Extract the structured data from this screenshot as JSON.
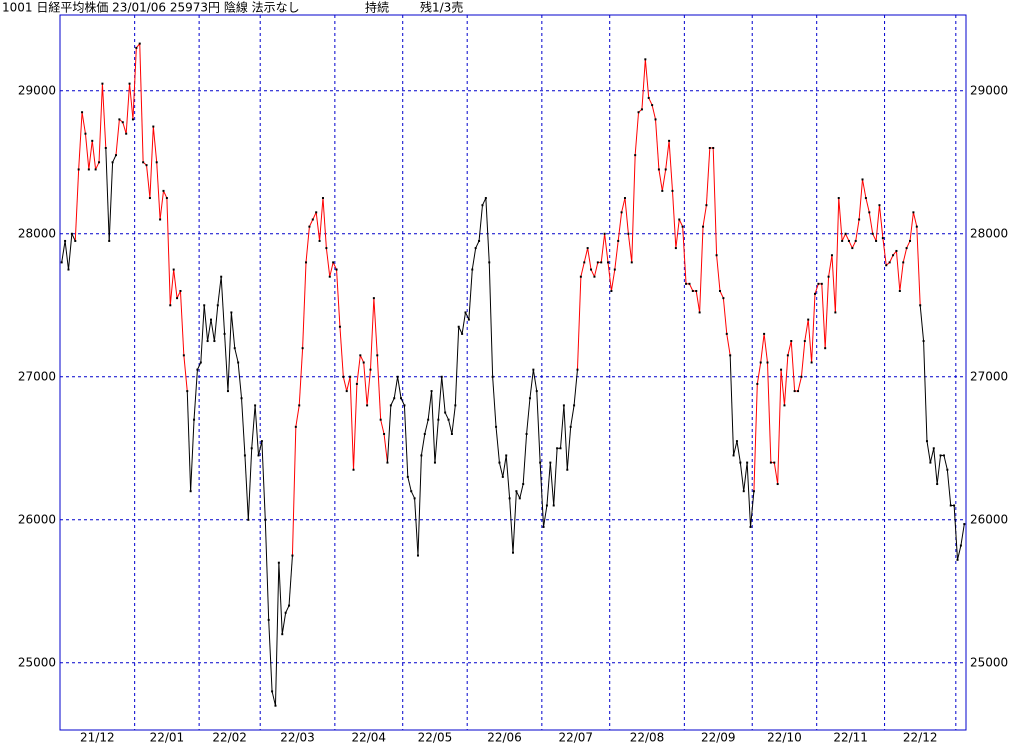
{
  "chart_data": {
    "type": "line",
    "title": "1001 日経平均株価 23/01/06 25973円 陰線 法示なし",
    "annotations": [
      "持続",
      "残1/3売"
    ],
    "x": [
      "21/12",
      "21/12",
      "21/12",
      "21/12",
      "21/12",
      "21/12",
      "21/12",
      "21/12",
      "21/12",
      "21/12",
      "21/12",
      "21/12",
      "21/12",
      "21/12",
      "21/12",
      "21/12",
      "21/12",
      "21/12",
      "21/12",
      "21/12",
      "21/12",
      "21/12",
      "22/01",
      "22/01",
      "22/01",
      "22/01",
      "22/01",
      "22/01",
      "22/01",
      "22/01",
      "22/01",
      "22/01",
      "22/01",
      "22/01",
      "22/01",
      "22/01",
      "22/01",
      "22/01",
      "22/01",
      "22/01",
      "22/01",
      "22/02",
      "22/02",
      "22/02",
      "22/02",
      "22/02",
      "22/02",
      "22/02",
      "22/02",
      "22/02",
      "22/02",
      "22/02",
      "22/02",
      "22/02",
      "22/02",
      "22/02",
      "22/02",
      "22/02",
      "22/02",
      "22/03",
      "22/03",
      "22/03",
      "22/03",
      "22/03",
      "22/03",
      "22/03",
      "22/03",
      "22/03",
      "22/03",
      "22/03",
      "22/03",
      "22/03",
      "22/03",
      "22/03",
      "22/03",
      "22/03",
      "22/03",
      "22/03",
      "22/03",
      "22/03",
      "22/03",
      "22/04",
      "22/04",
      "22/04",
      "22/04",
      "22/04",
      "22/04",
      "22/04",
      "22/04",
      "22/04",
      "22/04",
      "22/04",
      "22/04",
      "22/04",
      "22/04",
      "22/04",
      "22/04",
      "22/04",
      "22/04",
      "22/04",
      "22/04",
      "22/05",
      "22/05",
      "22/05",
      "22/05",
      "22/05",
      "22/05",
      "22/05",
      "22/05",
      "22/05",
      "22/05",
      "22/05",
      "22/05",
      "22/05",
      "22/05",
      "22/05",
      "22/05",
      "22/05",
      "22/05",
      "22/05",
      "22/06",
      "22/06",
      "22/06",
      "22/06",
      "22/06",
      "22/06",
      "22/06",
      "22/06",
      "22/06",
      "22/06",
      "22/06",
      "22/06",
      "22/06",
      "22/06",
      "22/06",
      "22/06",
      "22/06",
      "22/06",
      "22/06",
      "22/06",
      "22/06",
      "22/06",
      "22/07",
      "22/07",
      "22/07",
      "22/07",
      "22/07",
      "22/07",
      "22/07",
      "22/07",
      "22/07",
      "22/07",
      "22/07",
      "22/07",
      "22/07",
      "22/07",
      "22/07",
      "22/07",
      "22/07",
      "22/07",
      "22/07",
      "22/07",
      "22/08",
      "22/08",
      "22/08",
      "22/08",
      "22/08",
      "22/08",
      "22/08",
      "22/08",
      "22/08",
      "22/08",
      "22/08",
      "22/08",
      "22/08",
      "22/08",
      "22/08",
      "22/08",
      "22/08",
      "22/08",
      "22/08",
      "22/08",
      "22/08",
      "22/08",
      "22/09",
      "22/09",
      "22/09",
      "22/09",
      "22/09",
      "22/09",
      "22/09",
      "22/09",
      "22/09",
      "22/09",
      "22/09",
      "22/09",
      "22/09",
      "22/09",
      "22/09",
      "22/09",
      "22/09",
      "22/09",
      "22/09",
      "22/09",
      "22/10",
      "22/10",
      "22/10",
      "22/10",
      "22/10",
      "22/10",
      "22/10",
      "22/10",
      "22/10",
      "22/10",
      "22/10",
      "22/10",
      "22/10",
      "22/10",
      "22/10",
      "22/10",
      "22/10",
      "22/10",
      "22/10",
      "22/11",
      "22/11",
      "22/11",
      "22/11",
      "22/11",
      "22/11",
      "22/11",
      "22/11",
      "22/11",
      "22/11",
      "22/11",
      "22/11",
      "22/11",
      "22/11",
      "22/11",
      "22/11",
      "22/11",
      "22/11",
      "22/11",
      "22/11",
      "22/12",
      "22/12",
      "22/12",
      "22/12",
      "22/12",
      "22/12",
      "22/12",
      "22/12",
      "22/12",
      "22/12",
      "22/12",
      "22/12",
      "22/12",
      "22/12",
      "22/12",
      "22/12",
      "22/12",
      "22/12",
      "22/12",
      "22/12",
      "22/12",
      null,
      null,
      null
    ],
    "values": [
      27800,
      27950,
      27750,
      28000,
      27950,
      28450,
      28850,
      28700,
      28450,
      28650,
      28450,
      28500,
      29050,
      28600,
      27950,
      28500,
      28550,
      28800,
      28780,
      28700,
      29050,
      28800,
      29300,
      29330,
      28500,
      28480,
      28250,
      28750,
      28500,
      28100,
      28300,
      28250,
      27500,
      27750,
      27550,
      27600,
      27150,
      26900,
      26200,
      26700,
      27050,
      27100,
      27500,
      27250,
      27400,
      27250,
      27500,
      27700,
      27300,
      26900,
      27450,
      27200,
      27100,
      26850,
      26450,
      26000,
      26500,
      26800,
      26450,
      26550,
      26000,
      25300,
      24800,
      24700,
      25700,
      25200,
      25350,
      25400,
      25750,
      26650,
      26800,
      27200,
      27800,
      28050,
      28100,
      28150,
      27950,
      28250,
      27900,
      27700,
      27800,
      27750,
      27350,
      27000,
      26900,
      27000,
      26350,
      26950,
      27150,
      27100,
      26800,
      27050,
      27550,
      27150,
      26700,
      26600,
      26400,
      26800,
      26850,
      27000,
      26850,
      26800,
      26300,
      26200,
      26150,
      25750,
      26450,
      26600,
      26700,
      26900,
      26400,
      26700,
      27000,
      26750,
      26700,
      26600,
      26800,
      27350,
      27300,
      27450,
      27400,
      27750,
      27900,
      27950,
      28200,
      28250,
      27800,
      27000,
      26650,
      26400,
      26300,
      26450,
      26150,
      25770,
      26200,
      26150,
      26250,
      26600,
      26850,
      27050,
      26900,
      26400,
      25950,
      26100,
      26400,
      26100,
      26500,
      26500,
      26800,
      26350,
      26650,
      26800,
      27050,
      27700,
      27800,
      27900,
      27750,
      27700,
      27800,
      27800,
      28000,
      27800,
      27600,
      27750,
      27950,
      28150,
      28250,
      28000,
      27800,
      28550,
      28850,
      28870,
      29220,
      28950,
      28900,
      28800,
      28450,
      28300,
      28450,
      28650,
      28300,
      27900,
      28100,
      28050,
      27650,
      27650,
      27600,
      27600,
      27450,
      28050,
      28200,
      28600,
      28600,
      27850,
      27600,
      27550,
      27300,
      27150,
      26450,
      26550,
      26400,
      26200,
      26400,
      25950,
      26200,
      26950,
      27100,
      27300,
      27100,
      26400,
      26400,
      26250,
      27050,
      26800,
      27150,
      27250,
      26900,
      26900,
      27000,
      27250,
      27400,
      27100,
      27580,
      27650,
      27650,
      27200,
      27700,
      27850,
      27450,
      28250,
      27950,
      28000,
      27950,
      27900,
      27950,
      28100,
      28380,
      28250,
      28150,
      28000,
      27950,
      28200,
      27970,
      27780,
      27800,
      27850,
      27880,
      27600,
      27800,
      27900,
      27950,
      28150,
      28050,
      27500,
      27250,
      26550,
      26400,
      26500,
      26250,
      26450,
      26450,
      26350,
      26100,
      26100,
      25720,
      25820,
      25970
    ],
    "segment_colors": [
      "black",
      "black",
      "black",
      "black",
      "black",
      "red",
      "red",
      "red",
      "red",
      "red",
      "red",
      "red",
      "red",
      "red",
      "black",
      "black",
      "black",
      "red",
      "red",
      "red",
      "red",
      "red",
      "red",
      "red",
      "red",
      "red",
      "red",
      "red",
      "red",
      "red",
      "red",
      "red",
      "red",
      "red",
      "red",
      "red",
      "red",
      "red",
      "black",
      "black",
      "black",
      "black",
      "black",
      "black",
      "black",
      "black",
      "black",
      "black",
      "black",
      "black",
      "black",
      "black",
      "black",
      "black",
      "black",
      "black",
      "black",
      "black",
      "black",
      "black",
      "black",
      "black",
      "black",
      "black",
      "black",
      "black",
      "black",
      "black",
      "black",
      "red",
      "red",
      "red",
      "red",
      "red",
      "red",
      "red",
      "red",
      "red",
      "red",
      "red",
      "red",
      "red",
      "red",
      "red",
      "red",
      "red",
      "red",
      "red",
      "red",
      "red",
      "red",
      "red",
      "red",
      "red",
      "red",
      "red",
      "red",
      "black",
      "black",
      "black",
      "black",
      "black",
      "black",
      "black",
      "black",
      "black",
      "black",
      "black",
      "black",
      "black",
      "black",
      "black",
      "black",
      "black",
      "black",
      "black",
      "black",
      "black",
      "black",
      "black",
      "black",
      "black",
      "black",
      "black",
      "black",
      "black",
      "black",
      "black",
      "black",
      "black",
      "black",
      "black",
      "black",
      "black",
      "black",
      "black",
      "black",
      "black",
      "black",
      "black",
      "black",
      "black",
      "black",
      "black",
      "black",
      "black",
      "black",
      "black",
      "black",
      "black",
      "black",
      "black",
      "black",
      "red",
      "red",
      "red",
      "red",
      "red",
      "red",
      "red",
      "red",
      "red",
      "red",
      "red",
      "red",
      "red",
      "red",
      "red",
      "red",
      "red",
      "red",
      "red",
      "red",
      "red",
      "red",
      "red",
      "red",
      "red",
      "red",
      "red",
      "red",
      "red",
      "red",
      "red",
      "red",
      "red",
      "red",
      "red",
      "red",
      "red",
      "red",
      "red",
      "red",
      "red",
      "red",
      "red",
      "red",
      "red",
      "black",
      "black",
      "black",
      "black",
      "black",
      "black",
      "black",
      "red",
      "red",
      "red",
      "red",
      "red",
      "red",
      "red",
      "red",
      "red",
      "red",
      "red",
      "red",
      "red",
      "red",
      "red",
      "red",
      "red",
      "red",
      "red",
      "red",
      "red",
      "red",
      "red",
      "red",
      "red",
      "red",
      "red",
      "red",
      "red",
      "red",
      "red",
      "red",
      "red",
      "red",
      "red",
      "red",
      "red",
      "red",
      "red",
      "red",
      "red",
      "red",
      "red",
      "red",
      "red",
      "red",
      "red",
      "red",
      "red",
      "black",
      "black",
      "black",
      "black",
      "black",
      "black",
      "black",
      "black",
      "black",
      "black",
      "black",
      "black",
      "black"
    ],
    "ylim": [
      24530,
      29530
    ],
    "yticks": [
      25000,
      26000,
      27000,
      28000,
      29000
    ],
    "grid": true,
    "frame_color": "#0000cc",
    "grid_color": "#0000cc"
  }
}
